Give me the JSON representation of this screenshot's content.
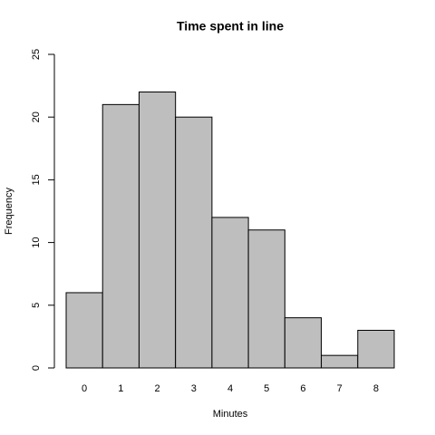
{
  "chart_data": {
    "type": "bar",
    "title": "Time spent in line",
    "x_label": "Minutes",
    "y_label": "Frequency",
    "categories": [
      "0",
      "1",
      "2",
      "3",
      "4",
      "5",
      "6",
      "7",
      "8"
    ],
    "values": [
      6,
      21,
      22,
      20,
      12,
      11,
      4,
      1,
      3
    ],
    "color": "#bebebe",
    "ylim": [
      0,
      25
    ],
    "yticks": [
      0,
      5,
      10,
      15,
      20,
      25
    ],
    "grid": false
  }
}
